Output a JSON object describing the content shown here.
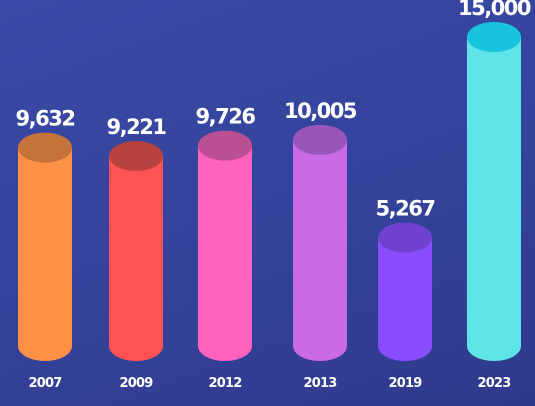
{
  "chart_data": {
    "type": "bar",
    "style": "3d-cylinder",
    "categories": [
      "2007",
      "2009",
      "2012",
      "2013",
      "2019",
      "2023"
    ],
    "values": [
      9632,
      9221,
      9726,
      10005,
      5267,
      15000
    ],
    "value_labels": [
      "9,632",
      "9,221",
      "9,726",
      "10,005",
      "5,267",
      "15,000"
    ],
    "colors": [
      "#ff9147",
      "#ff5252",
      "#ff63be",
      "#c96ae6",
      "#8a4cff",
      "#5ee3e6"
    ],
    "top_colors": [
      "#c5733b",
      "#b9423f",
      "#bb4f93",
      "#9a55b8",
      "#6e42cf",
      "#18c3de"
    ],
    "grid": false,
    "legend": "none"
  }
}
